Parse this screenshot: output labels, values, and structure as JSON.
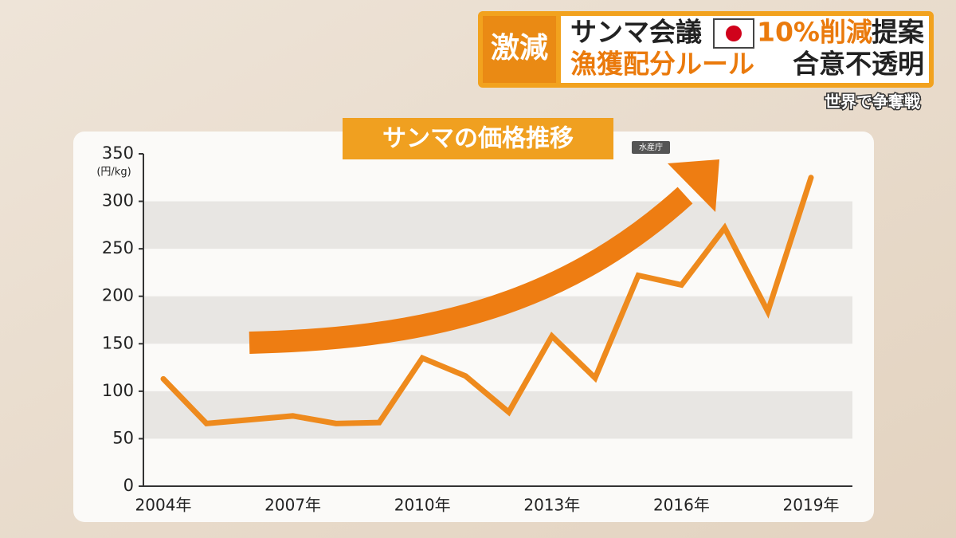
{
  "header": {
    "tag": "激減",
    "line1": [
      "サンマ会議",
      "10%削減",
      "提案"
    ],
    "line2": [
      "漁獲配分ルール",
      "合意不透明"
    ],
    "subtitle": "世界で争奪戦"
  },
  "chart_data": {
    "type": "line",
    "title": "サンマの価格推移",
    "source": "水産庁",
    "y_unit": "(円/kg)",
    "categories": [
      "2004年",
      null,
      null,
      "2007年",
      null,
      null,
      "2010年",
      null,
      null,
      "2013年",
      null,
      null,
      "2016年",
      null,
      null,
      "2019年"
    ],
    "values": [
      113,
      66,
      70,
      74,
      66,
      67,
      135,
      116,
      78,
      158,
      114,
      222,
      212,
      272,
      184,
      325
    ],
    "color": "#ee8a1d",
    "ylim": [
      0,
      350
    ],
    "yticks": [
      0,
      50,
      100,
      150,
      200,
      250,
      300,
      350
    ],
    "grid": true
  }
}
